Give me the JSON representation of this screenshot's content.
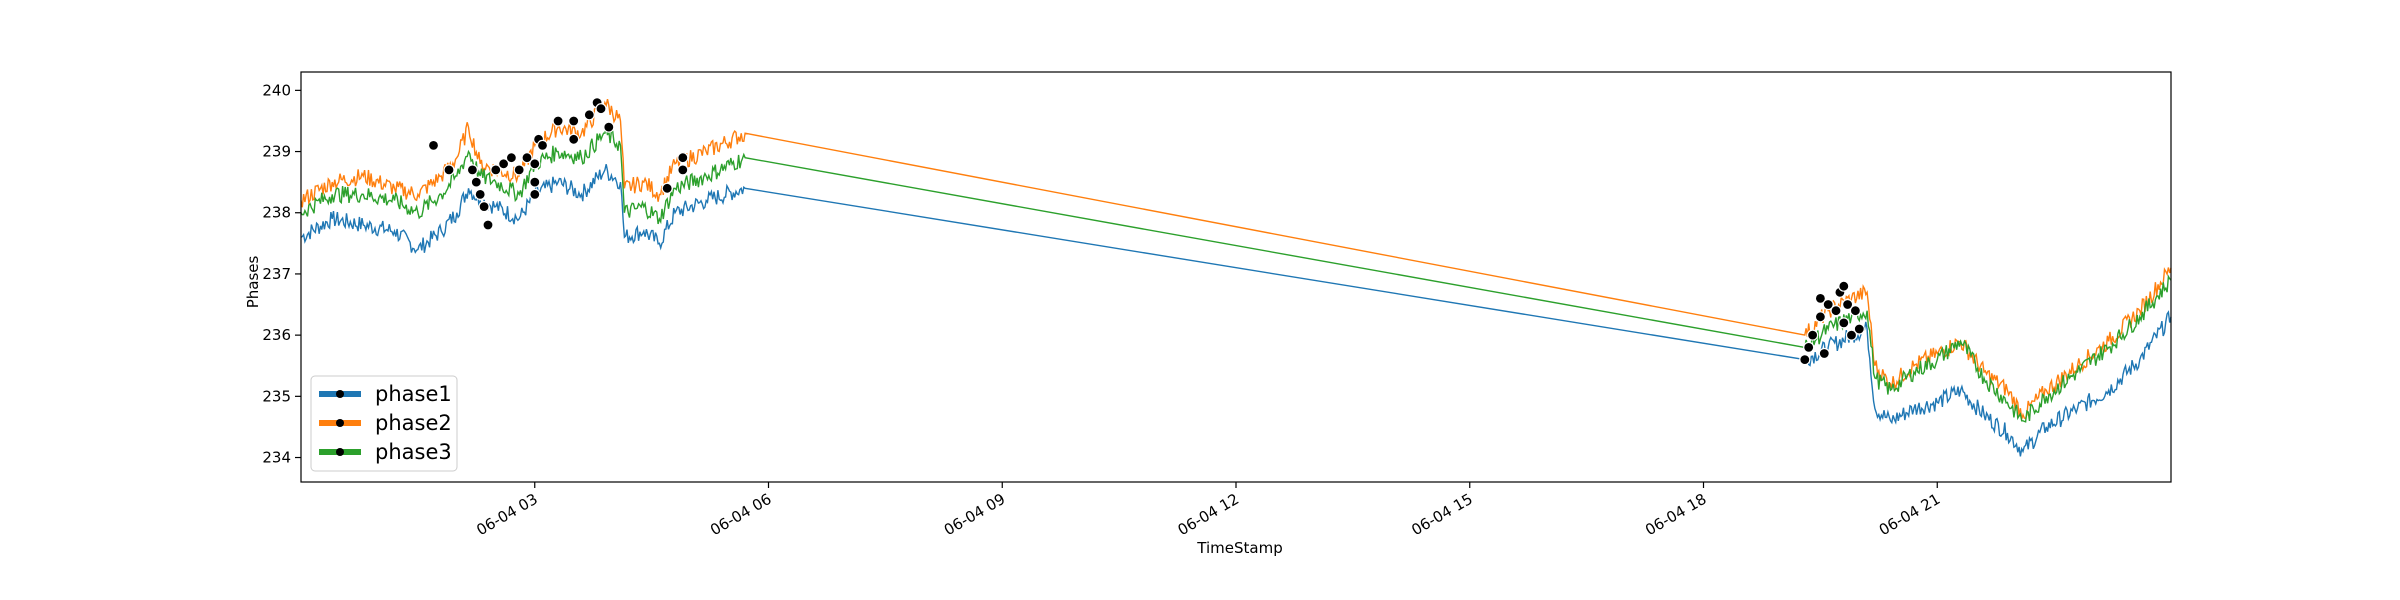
{
  "chart_data": {
    "type": "line",
    "xlabel": "TimeStamp",
    "ylabel": "Phases",
    "xlim": [
      "06-04 00:00",
      "06-04 24:00"
    ],
    "ylim": [
      233.6,
      240.3
    ],
    "x_ticks": [
      {
        "label": "06-04 03",
        "hour": 3
      },
      {
        "label": "06-04 06",
        "hour": 6
      },
      {
        "label": "06-04 09",
        "hour": 9
      },
      {
        "label": "06-04 12",
        "hour": 12
      },
      {
        "label": "06-04 15",
        "hour": 15
      },
      {
        "label": "06-04 18",
        "hour": 18
      },
      {
        "label": "06-04 21",
        "hour": 21
      }
    ],
    "y_ticks": [
      234,
      235,
      236,
      237,
      238,
      239,
      240
    ],
    "grid": false,
    "legend": {
      "position": "lower-left"
    },
    "series": [
      {
        "name": "phase1",
        "color": "#1f77b4",
        "points": [
          [
            0.0,
            237.6
          ],
          [
            0.4,
            237.9
          ],
          [
            0.8,
            237.8
          ],
          [
            1.2,
            237.7
          ],
          [
            1.5,
            237.4
          ],
          [
            1.8,
            237.7
          ],
          [
            2.0,
            238.0
          ],
          [
            2.15,
            238.4
          ],
          [
            2.3,
            238.2
          ],
          [
            2.5,
            238.1
          ],
          [
            2.8,
            237.9
          ],
          [
            3.0,
            238.3
          ],
          [
            3.3,
            238.5
          ],
          [
            3.6,
            238.3
          ],
          [
            3.9,
            238.7
          ],
          [
            4.1,
            238.5
          ],
          [
            4.15,
            237.6
          ],
          [
            4.4,
            237.7
          ],
          [
            4.6,
            237.5
          ],
          [
            4.8,
            238.0
          ],
          [
            5.2,
            238.2
          ],
          [
            5.7,
            238.4
          ],
          [
            19.3,
            235.6
          ],
          [
            19.6,
            235.8
          ],
          [
            19.9,
            236.0
          ],
          [
            20.1,
            236.1
          ],
          [
            20.2,
            234.8
          ],
          [
            20.4,
            234.6
          ],
          [
            20.7,
            234.8
          ],
          [
            21.0,
            234.9
          ],
          [
            21.3,
            235.1
          ],
          [
            21.6,
            234.7
          ],
          [
            21.9,
            234.4
          ],
          [
            22.1,
            234.1
          ],
          [
            22.4,
            234.5
          ],
          [
            22.8,
            234.8
          ],
          [
            23.2,
            235.1
          ],
          [
            23.6,
            235.6
          ],
          [
            24.0,
            236.3
          ]
        ]
      },
      {
        "name": "phase2",
        "color": "#ff7f0e",
        "points": [
          [
            0.0,
            238.2
          ],
          [
            0.4,
            238.5
          ],
          [
            0.8,
            238.6
          ],
          [
            1.2,
            238.4
          ],
          [
            1.5,
            238.3
          ],
          [
            1.8,
            238.6
          ],
          [
            2.0,
            238.9
          ],
          [
            2.15,
            239.4
          ],
          [
            2.3,
            238.8
          ],
          [
            2.5,
            238.7
          ],
          [
            2.8,
            238.6
          ],
          [
            3.0,
            239.1
          ],
          [
            3.3,
            239.4
          ],
          [
            3.6,
            239.3
          ],
          [
            3.9,
            239.8
          ],
          [
            4.1,
            239.5
          ],
          [
            4.15,
            238.4
          ],
          [
            4.4,
            238.5
          ],
          [
            4.6,
            238.3
          ],
          [
            4.8,
            238.8
          ],
          [
            5.2,
            239.0
          ],
          [
            5.7,
            239.3
          ],
          [
            19.3,
            236.0
          ],
          [
            19.6,
            236.4
          ],
          [
            19.9,
            236.6
          ],
          [
            20.1,
            236.7
          ],
          [
            20.2,
            235.5
          ],
          [
            20.4,
            235.2
          ],
          [
            20.7,
            235.5
          ],
          [
            21.0,
            235.7
          ],
          [
            21.3,
            235.9
          ],
          [
            21.6,
            235.4
          ],
          [
            21.9,
            235.1
          ],
          [
            22.1,
            234.7
          ],
          [
            22.4,
            235.1
          ],
          [
            22.8,
            235.5
          ],
          [
            23.2,
            235.9
          ],
          [
            23.6,
            236.4
          ],
          [
            24.0,
            237.1
          ]
        ]
      },
      {
        "name": "phase3",
        "color": "#2ca02c",
        "points": [
          [
            0.0,
            238.0
          ],
          [
            0.4,
            238.3
          ],
          [
            0.8,
            238.3
          ],
          [
            1.2,
            238.2
          ],
          [
            1.5,
            238.0
          ],
          [
            1.8,
            238.3
          ],
          [
            2.0,
            238.6
          ],
          [
            2.15,
            239.0
          ],
          [
            2.3,
            238.6
          ],
          [
            2.5,
            238.5
          ],
          [
            2.8,
            238.3
          ],
          [
            3.0,
            238.8
          ],
          [
            3.3,
            239.0
          ],
          [
            3.6,
            238.9
          ],
          [
            3.9,
            239.3
          ],
          [
            4.1,
            239.1
          ],
          [
            4.15,
            238.0
          ],
          [
            4.4,
            238.1
          ],
          [
            4.6,
            237.9
          ],
          [
            4.8,
            238.4
          ],
          [
            5.2,
            238.6
          ],
          [
            5.7,
            238.9
          ],
          [
            19.3,
            235.8
          ],
          [
            19.6,
            236.1
          ],
          [
            19.9,
            236.3
          ],
          [
            20.1,
            236.4
          ],
          [
            20.2,
            235.3
          ],
          [
            20.4,
            235.1
          ],
          [
            20.7,
            235.4
          ],
          [
            21.0,
            235.6
          ],
          [
            21.3,
            235.9
          ],
          [
            21.6,
            235.3
          ],
          [
            21.9,
            234.9
          ],
          [
            22.1,
            234.6
          ],
          [
            22.4,
            235.0
          ],
          [
            22.8,
            235.4
          ],
          [
            23.2,
            235.8
          ],
          [
            23.6,
            236.3
          ],
          [
            24.0,
            236.9
          ]
        ]
      }
    ],
    "anomaly_markers": [
      [
        1.7,
        239.1
      ],
      [
        1.9,
        238.7
      ],
      [
        2.2,
        238.7
      ],
      [
        2.25,
        238.5
      ],
      [
        2.3,
        238.3
      ],
      [
        2.35,
        238.1
      ],
      [
        2.4,
        237.8
      ],
      [
        2.5,
        238.7
      ],
      [
        2.6,
        238.8
      ],
      [
        2.7,
        238.9
      ],
      [
        2.8,
        238.7
      ],
      [
        2.9,
        238.9
      ],
      [
        3.0,
        238.5
      ],
      [
        3.0,
        238.3
      ],
      [
        3.0,
        238.8
      ],
      [
        3.05,
        239.2
      ],
      [
        3.1,
        239.1
      ],
      [
        3.3,
        239.5
      ],
      [
        3.5,
        239.5
      ],
      [
        3.5,
        239.2
      ],
      [
        3.7,
        239.6
      ],
      [
        3.8,
        239.8
      ],
      [
        3.85,
        239.7
      ],
      [
        3.95,
        239.4
      ],
      [
        4.7,
        238.4
      ],
      [
        4.9,
        238.9
      ],
      [
        4.9,
        238.7
      ],
      [
        19.3,
        235.6
      ],
      [
        19.35,
        235.8
      ],
      [
        19.4,
        236.0
      ],
      [
        19.5,
        236.3
      ],
      [
        19.5,
        236.6
      ],
      [
        19.55,
        235.7
      ],
      [
        19.6,
        236.5
      ],
      [
        19.7,
        236.4
      ],
      [
        19.75,
        236.7
      ],
      [
        19.8,
        236.8
      ],
      [
        19.8,
        236.2
      ],
      [
        19.85,
        236.5
      ],
      [
        19.9,
        236.0
      ],
      [
        19.95,
        236.4
      ],
      [
        20.0,
        236.1
      ]
    ]
  }
}
